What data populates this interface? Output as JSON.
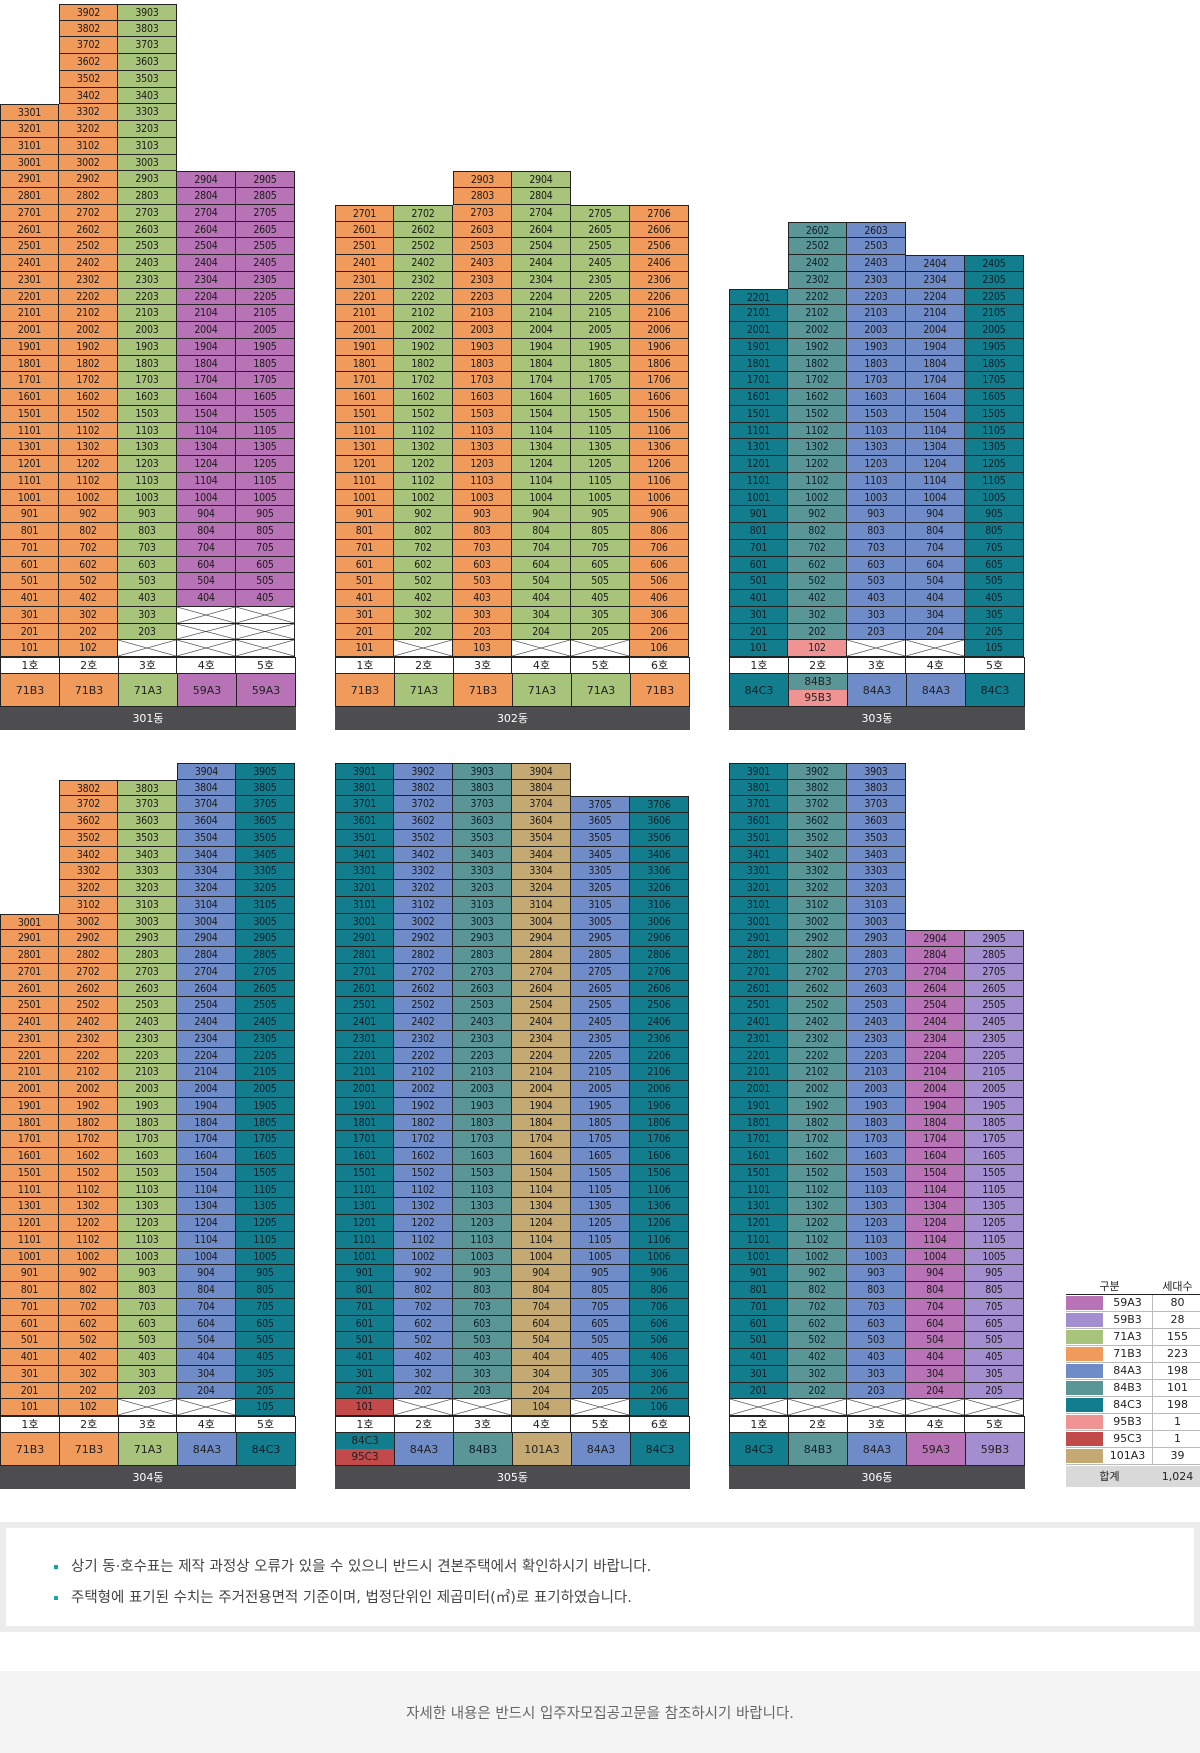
{
  "colors": {
    "59A3": "#b873b6",
    "59B3": "#a38fcf",
    "71A3": "#a8c47a",
    "71B3": "#f09a5c",
    "84A3": "#6f8cc8",
    "84B3": "#5b9696",
    "84C3": "#127d8c",
    "95B3": "#f09393",
    "95C3": "#c24a4a",
    "101A3": "#c4aa72"
  },
  "buildings": [
    {
      "name": "301동",
      "columns": [
        {
          "line": "1호",
          "type": "71B3",
          "top": 33,
          "units": [
            {
              "f": 1,
              "c": "71B3"
            }
          ],
          "empty": []
        },
        {
          "line": "2호",
          "type": "71B3",
          "top": 39
        },
        {
          "line": "3호",
          "type": "71A3",
          "top": 39
        },
        {
          "line": "4호",
          "type": "59A3",
          "top": 29
        },
        {
          "line": "5호",
          "type": "59A3",
          "top": 29
        }
      ],
      "spec": [
        {
          "col": 0,
          "top": 33,
          "bottom": 1,
          "series": "01",
          "type": "71B3",
          "skip": [
            12,
            13,
            14
          ]
        },
        {
          "col": 1,
          "top": 39,
          "bottom": 1,
          "series": "02",
          "type": "71B3",
          "skip": [
            12,
            13,
            14
          ]
        },
        {
          "col": 2,
          "top": 39,
          "bottom": 2,
          "series": "03",
          "type": "71A3",
          "skip": [
            12,
            13,
            14
          ]
        },
        {
          "col": 3,
          "top": 29,
          "bottom": 4,
          "series": "04",
          "type": "59A3",
          "skip": [
            12,
            13,
            14
          ]
        },
        {
          "col": 4,
          "top": 29,
          "bottom": 4,
          "series": "05",
          "type": "59A3",
          "skip": [
            12,
            13,
            14
          ]
        }
      ],
      "header": [
        "1호",
        "2호",
        "3호",
        "4호",
        "5호"
      ],
      "types": [
        [
          "71B3"
        ],
        [
          "71B3"
        ],
        [
          "71A3"
        ],
        [
          "59A3"
        ],
        [
          "59A3"
        ]
      ]
    }
  ],
  "notes": [
    "상기 동·호수표는 제작 과정상 오류가 있을 수 있으니 반드시 견본주택에서 확인하시기 바랍니다.",
    "주택형에 표기된 수치는 주거전용면적 기준이며, 법정단위인 제곱미터(㎡)로 표기하였습니다."
  ],
  "footer": "자세한 내용은 반드시 입주자모집공고문을 참조하시기 바랍니다.",
  "legend": {
    "head_type": "구분",
    "head_count": "세대수",
    "rows": [
      {
        "type": "59A3",
        "count": "80"
      },
      {
        "type": "59B3",
        "count": "28"
      },
      {
        "type": "71A3",
        "count": "155"
      },
      {
        "type": "71B3",
        "count": "223"
      },
      {
        "type": "84A3",
        "count": "198"
      },
      {
        "type": "84B3",
        "count": "101"
      },
      {
        "type": "84C3",
        "count": "198"
      },
      {
        "type": "95B3",
        "count": "1"
      },
      {
        "type": "95C3",
        "count": "1"
      },
      {
        "type": "101A3",
        "count": "39"
      }
    ],
    "total_label": "합계",
    "total_value": "1,024"
  },
  "blocks": [
    {
      "name": "301동",
      "header": [
        "1호",
        "2호",
        "3호",
        "4호",
        "5호"
      ],
      "types": [
        [
          "71B3"
        ],
        [
          "71B3"
        ],
        [
          "71A3"
        ],
        [
          "59A3"
        ],
        [
          "59A3"
        ]
      ],
      "cols": [
        {
          "line": "01",
          "color": "71B3",
          "top": 33,
          "bottom": 1,
          "xFloors": []
        },
        {
          "line": "02",
          "color": "71B3",
          "top": 39,
          "bottom": 1,
          "xFloors": []
        },
        {
          "line": "03",
          "color": "71A3",
          "top": 39,
          "bottom": 2,
          "xFloors": [
            1
          ]
        },
        {
          "line": "04",
          "color": "59A3",
          "top": 29,
          "bottom": 4,
          "xFloors": [
            1,
            2,
            3
          ]
        },
        {
          "line": "05",
          "color": "59A3",
          "top": 29,
          "bottom": 4,
          "xFloors": [
            1,
            2,
            3
          ]
        }
      ]
    },
    {
      "name": "302동",
      "header": [
        "1호",
        "2호",
        "3호",
        "4호",
        "5호",
        "6호"
      ],
      "types": [
        [
          "71B3"
        ],
        [
          "71A3"
        ],
        [
          "71B3"
        ],
        [
          "71A3"
        ],
        [
          "71A3"
        ],
        [
          "71B3"
        ]
      ],
      "cols": [
        {
          "line": "01",
          "color": "71B3",
          "top": 27,
          "bottom": 1,
          "xFloors": []
        },
        {
          "line": "02",
          "color": "71A3",
          "top": 27,
          "bottom": 2,
          "xFloors": [
            1
          ]
        },
        {
          "line": "03",
          "color": "71B3",
          "top": 29,
          "bottom": 1,
          "xFloors": []
        },
        {
          "line": "04",
          "color": "71A3",
          "top": 29,
          "bottom": 2,
          "xFloors": [
            1
          ]
        },
        {
          "line": "05",
          "color": "71A3",
          "top": 27,
          "bottom": 2,
          "xFloors": [
            1
          ]
        },
        {
          "line": "06",
          "color": "71B3",
          "top": 27,
          "bottom": 1,
          "xFloors": []
        }
      ]
    },
    {
      "name": "303동",
      "header": [
        "1호",
        "2호",
        "3호",
        "4호",
        "5호"
      ],
      "types": [
        [
          "84C3"
        ],
        [
          "84B3",
          "95B3"
        ],
        [
          "84A3"
        ],
        [
          "84A3"
        ],
        [
          "84C3"
        ]
      ],
      "cols": [
        {
          "line": "01",
          "color": "84C3",
          "top": 22,
          "bottom": 1,
          "xFloors": []
        },
        {
          "line": "02",
          "color": "84B3",
          "top": 26,
          "bottom": 1,
          "xFloors": [],
          "special": {
            "1": "95B3"
          }
        },
        {
          "line": "03",
          "color": "84A3",
          "top": 26,
          "bottom": 2,
          "xFloors": [
            1
          ]
        },
        {
          "line": "04",
          "color": "84A3",
          "top": 24,
          "bottom": 2,
          "xFloors": [
            1
          ]
        },
        {
          "line": "05",
          "color": "84C3",
          "top": 24,
          "bottom": 1,
          "xFloors": []
        }
      ]
    },
    {
      "name": "304동",
      "header": [
        "1호",
        "2호",
        "3호",
        "4호",
        "5호"
      ],
      "types": [
        [
          "71B3"
        ],
        [
          "71B3"
        ],
        [
          "71A3"
        ],
        [
          "84A3"
        ],
        [
          "84C3"
        ]
      ],
      "cols": [
        {
          "line": "01",
          "color": "71B3",
          "top": 30,
          "bottom": 1,
          "xFloors": []
        },
        {
          "line": "02",
          "color": "71B3",
          "top": 38,
          "bottom": 1,
          "xFloors": []
        },
        {
          "line": "03",
          "color": "71A3",
          "top": 38,
          "bottom": 2,
          "xFloors": [
            1
          ]
        },
        {
          "line": "04",
          "color": "84A3",
          "top": 39,
          "bottom": 2,
          "xFloors": [
            1
          ]
        },
        {
          "line": "05",
          "color": "84C3",
          "top": 39,
          "bottom": 1,
          "xFloors": []
        }
      ]
    },
    {
      "name": "305동",
      "header": [
        "1호",
        "2호",
        "3호",
        "4호",
        "5호",
        "6호"
      ],
      "types": [
        [
          "84C3",
          "95C3"
        ],
        [
          "84A3"
        ],
        [
          "84B3"
        ],
        [
          "101A3"
        ],
        [
          "84A3"
        ],
        [
          "84C3"
        ]
      ],
      "cols": [
        {
          "line": "01",
          "color": "84C3",
          "top": 39,
          "bottom": 1,
          "xFloors": [],
          "special": {
            "1": "95C3"
          }
        },
        {
          "line": "02",
          "color": "84A3",
          "top": 39,
          "bottom": 2,
          "xFloors": [
            1
          ]
        },
        {
          "line": "03",
          "color": "84B3",
          "top": 39,
          "bottom": 2,
          "xFloors": [
            1
          ]
        },
        {
          "line": "04",
          "color": "101A3",
          "top": 39,
          "bottom": 1,
          "xFloors": []
        },
        {
          "line": "05",
          "color": "84A3",
          "top": 37,
          "bottom": 2,
          "xFloors": [
            1
          ]
        },
        {
          "line": "06",
          "color": "84C3",
          "top": 37,
          "bottom": 1,
          "xFloors": []
        }
      ]
    },
    {
      "name": "306동",
      "header": [
        "1호",
        "2호",
        "3호",
        "4호",
        "5호"
      ],
      "types": [
        [
          "84C3"
        ],
        [
          "84B3"
        ],
        [
          "84A3"
        ],
        [
          "59A3"
        ],
        [
          "59B3"
        ]
      ],
      "cols": [
        {
          "line": "01",
          "color": "84C3",
          "top": 39,
          "bottom": 2,
          "xFloors": [
            1
          ]
        },
        {
          "line": "02",
          "color": "84B3",
          "top": 39,
          "bottom": 2,
          "xFloors": [
            1
          ]
        },
        {
          "line": "03",
          "color": "84A3",
          "top": 39,
          "bottom": 2,
          "xFloors": [
            1
          ]
        },
        {
          "line": "04",
          "color": "59A3",
          "top": 29,
          "bottom": 2,
          "xFloors": [
            1
          ]
        },
        {
          "line": "05",
          "color": "59B3",
          "top": 29,
          "bottom": 2,
          "xFloors": [
            1
          ]
        }
      ]
    }
  ],
  "floor_sequence": [
    39,
    38,
    37,
    36,
    35,
    34,
    33,
    32,
    31,
    30,
    29,
    28,
    27,
    26,
    25,
    24,
    23,
    22,
    21,
    20,
    19,
    18,
    17,
    16,
    15,
    "11",
    13,
    12,
    11,
    10,
    9,
    8,
    7,
    6,
    5,
    4,
    3,
    2,
    1
  ]
}
